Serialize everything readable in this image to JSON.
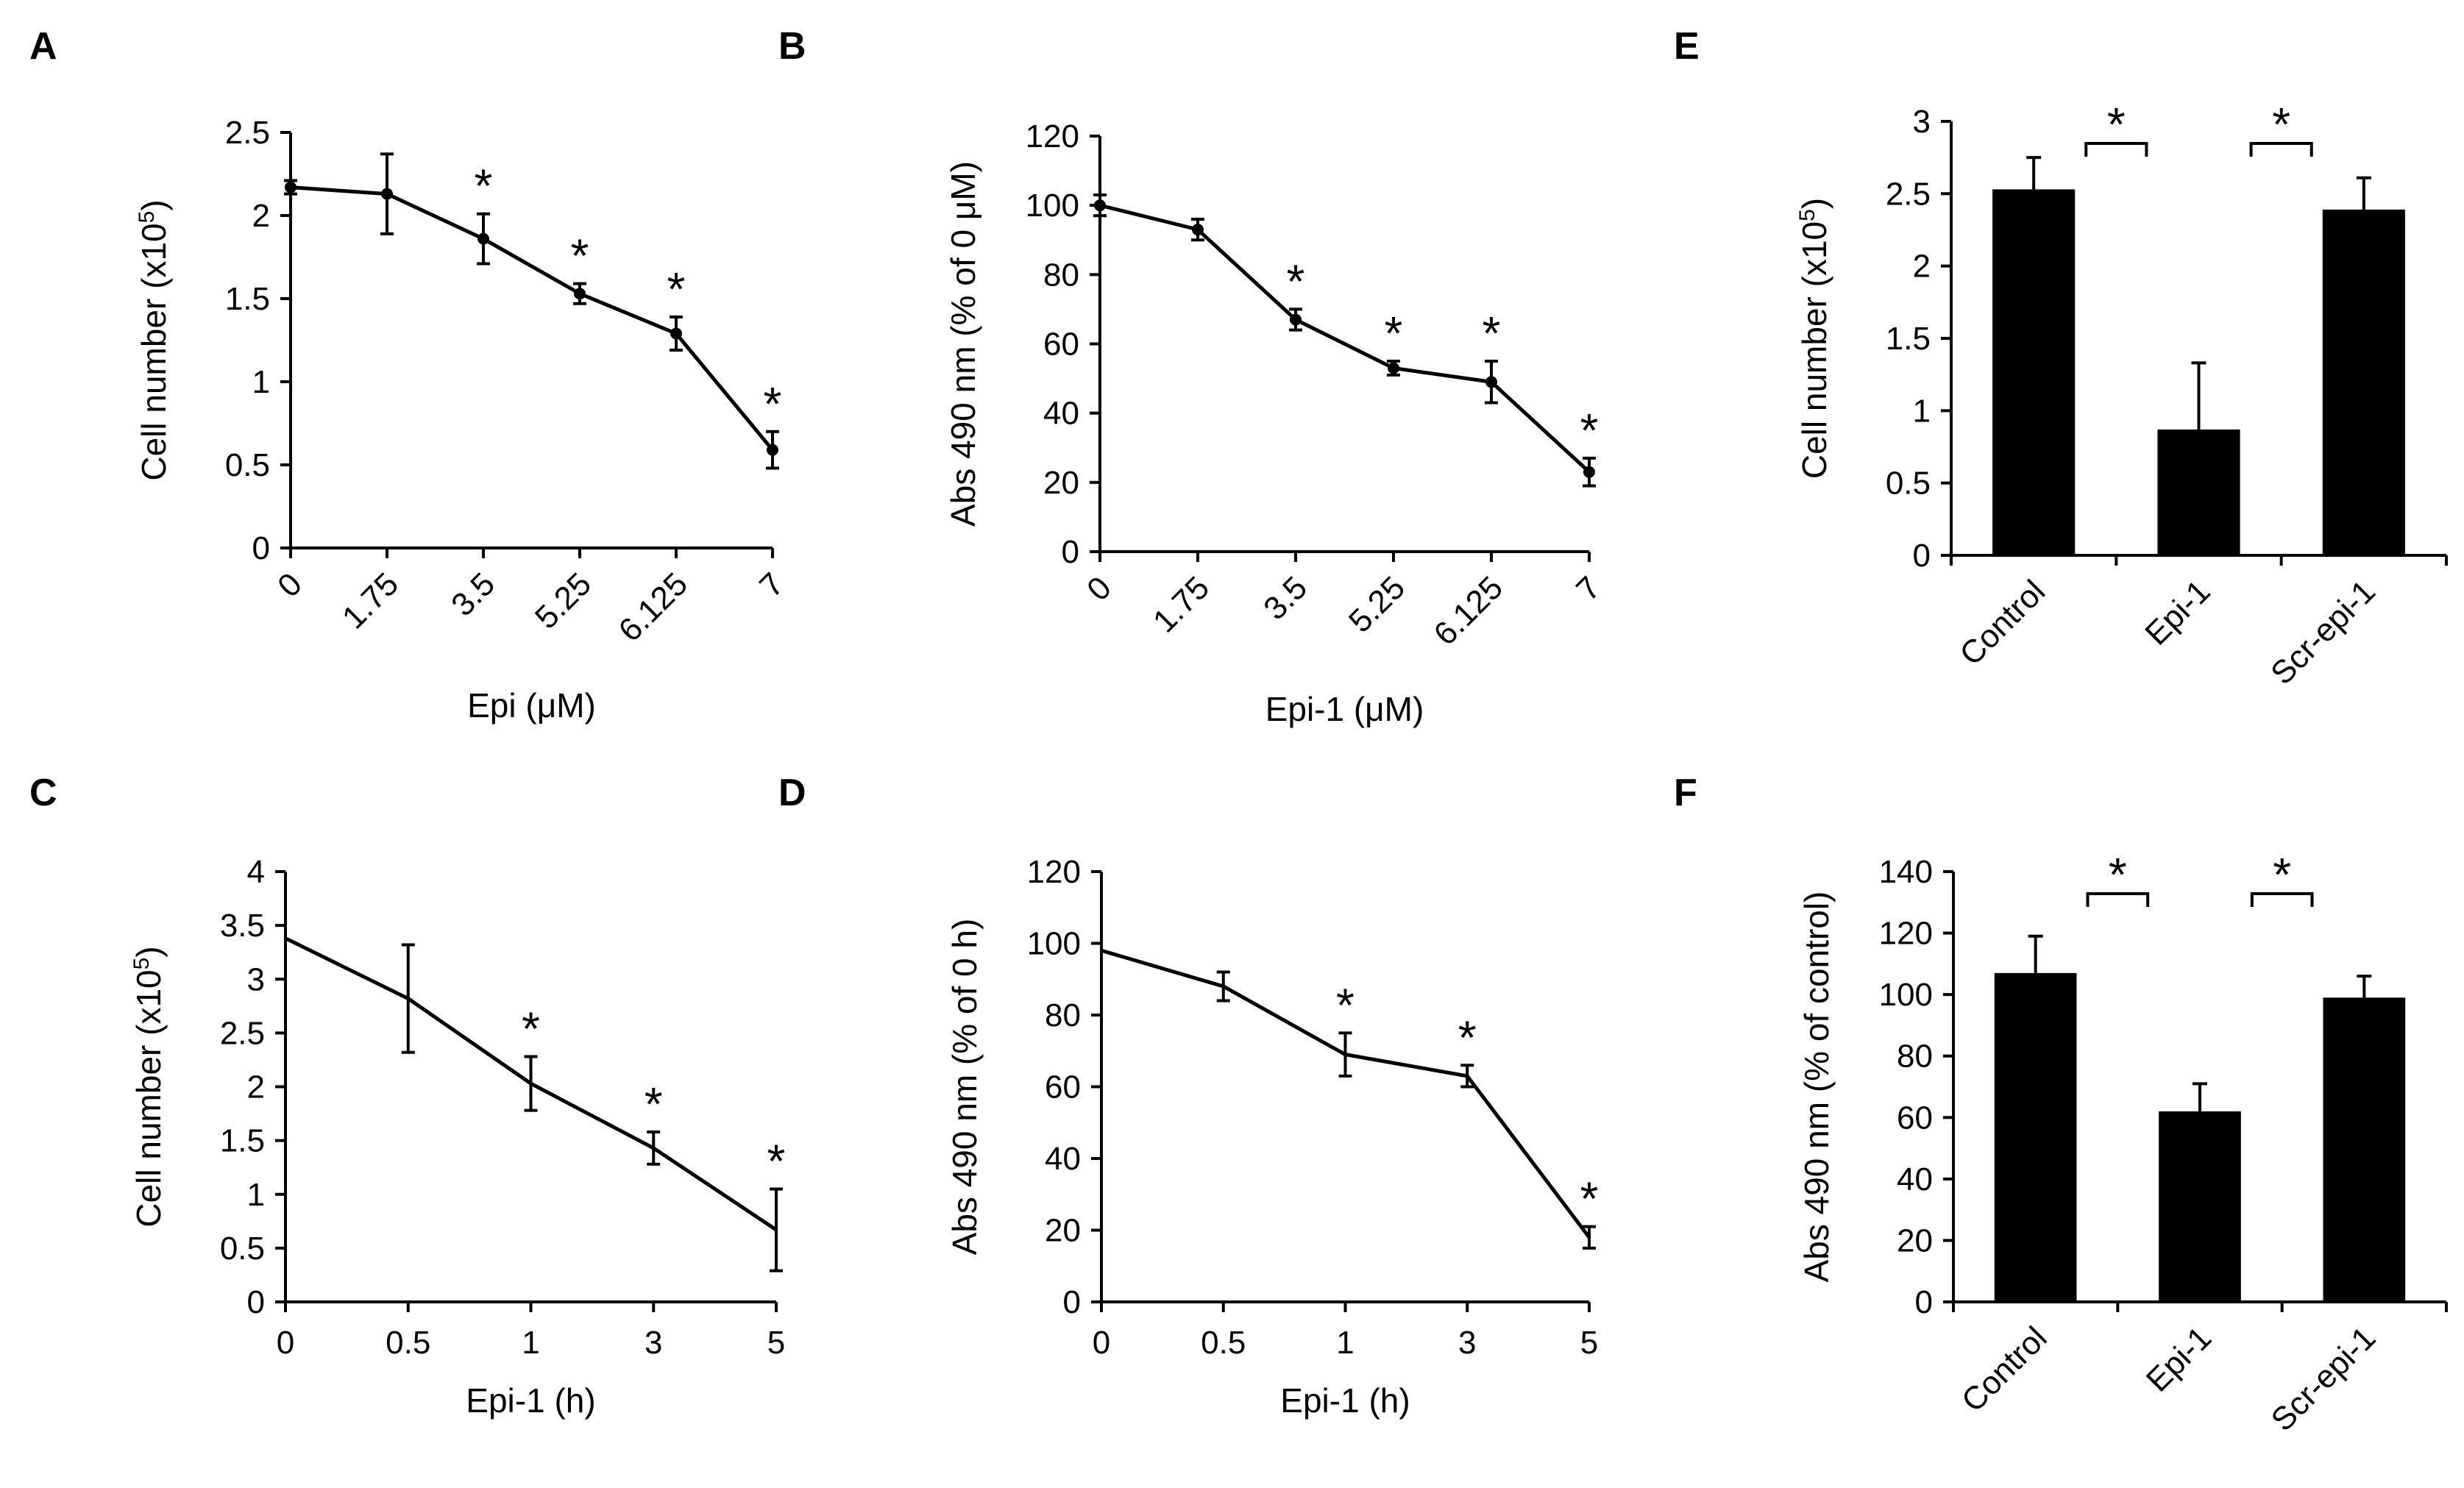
{
  "chart_data": [
    {
      "id": "A",
      "panel_label": "A",
      "type": "line",
      "xlabel": "Epi (μM)",
      "ylabel": "Cell number (x10",
      "ylabel_sup": "5",
      "ylabel_end": ")",
      "categories": [
        "0",
        "1.75",
        "3.5",
        "5.25",
        "6.125",
        "7"
      ],
      "values": [
        2.17,
        2.13,
        1.86,
        1.53,
        1.29,
        0.59
      ],
      "errors": [
        0.04,
        0.24,
        0.15,
        0.06,
        0.1,
        0.11
      ],
      "significance": [
        "",
        "",
        "*",
        "*",
        "*",
        "*"
      ],
      "yticks": [
        "0",
        "0.5",
        "1",
        "1.5",
        "2",
        "2.5"
      ],
      "ylim": [
        0,
        2.5
      ],
      "markers": true,
      "rotated_ticks": true
    },
    {
      "id": "B",
      "panel_label": "B",
      "type": "line",
      "xlabel": "Epi-1 (μM)",
      "ylabel": "Abs 490 nm (% of 0 μM)",
      "categories": [
        "0",
        "1.75",
        "3.5",
        "5.25",
        "6.125",
        "7"
      ],
      "values": [
        100,
        93,
        67,
        53,
        49,
        23
      ],
      "errors": [
        3,
        3,
        3,
        2,
        6,
        4
      ],
      "significance": [
        "",
        "",
        "*",
        "*",
        "*",
        "*"
      ],
      "yticks": [
        "0",
        "20",
        "40",
        "60",
        "80",
        "100",
        "120"
      ],
      "ylim": [
        0,
        120
      ],
      "markers": true,
      "rotated_ticks": true
    },
    {
      "id": "C",
      "panel_label": "C",
      "type": "line",
      "xlabel": "Epi-1 (h)",
      "ylabel": "Cell number (x10",
      "ylabel_sup": "5",
      "ylabel_end": ")",
      "categories": [
        "0",
        "0.5",
        "1",
        "3",
        "5"
      ],
      "values": [
        3.38,
        2.82,
        2.03,
        1.43,
        0.67
      ],
      "errors": [
        0,
        0.5,
        0.25,
        0.15,
        0.38
      ],
      "significance": [
        "",
        "",
        "*",
        "*",
        "*"
      ],
      "yticks": [
        "0",
        "0.5",
        "1",
        "1.5",
        "2",
        "2.5",
        "3",
        "3.5",
        "4"
      ],
      "ylim": [
        0,
        4
      ],
      "markers": false,
      "rotated_ticks": false
    },
    {
      "id": "D",
      "panel_label": "D",
      "type": "line",
      "xlabel": "Epi-1 (h)",
      "ylabel": "Abs 490 nm (% of 0 h)",
      "categories": [
        "0",
        "0.5",
        "1",
        "3",
        "5"
      ],
      "values": [
        98,
        88,
        69,
        63,
        18
      ],
      "errors": [
        0,
        4,
        6,
        3,
        3
      ],
      "significance": [
        "",
        "",
        "*",
        "*",
        "*"
      ],
      "yticks": [
        "0",
        "20",
        "40",
        "60",
        "80",
        "100",
        "120"
      ],
      "ylim": [
        0,
        120
      ],
      "markers": false,
      "rotated_ticks": false
    },
    {
      "id": "E",
      "panel_label": "E",
      "type": "bar",
      "xlabel": "",
      "ylabel": "Cell number (x10",
      "ylabel_sup": "5",
      "ylabel_end": ")",
      "categories": [
        "Control",
        "Epi-1",
        "Scr-epi-1"
      ],
      "values": [
        2.53,
        0.87,
        2.39
      ],
      "errors": [
        0.22,
        0.46,
        0.22
      ],
      "brackets": [
        {
          "from": 0,
          "to": 1,
          "label": "*"
        },
        {
          "from": 1,
          "to": 2,
          "label": "*"
        }
      ],
      "yticks": [
        "0",
        "0.5",
        "1",
        "1.5",
        "2",
        "2.5",
        "3"
      ],
      "ylim": [
        0,
        3
      ],
      "rotated_ticks": true
    },
    {
      "id": "F",
      "panel_label": "F",
      "type": "bar",
      "xlabel": "",
      "ylabel": "Abs 490 nm (% of control)",
      "categories": [
        "Control",
        "Epi-1",
        "Scr-epi-1"
      ],
      "values": [
        107,
        62,
        99
      ],
      "errors": [
        12,
        9,
        7
      ],
      "brackets": [
        {
          "from": 0,
          "to": 1,
          "label": "*"
        },
        {
          "from": 1,
          "to": 2,
          "label": "*"
        }
      ],
      "yticks": [
        "0",
        "20",
        "40",
        "60",
        "80",
        "100",
        "120",
        "140"
      ],
      "ylim": [
        0,
        140
      ],
      "rotated_ticks": true
    }
  ]
}
